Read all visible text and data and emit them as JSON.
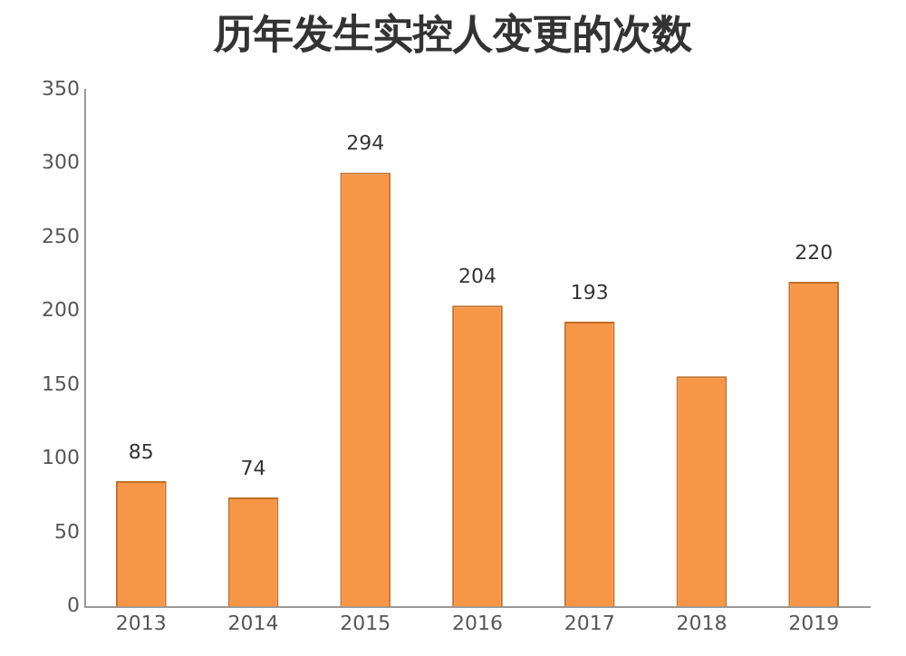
{
  "chart_data": {
    "type": "bar",
    "title": "历年发生实控人变更的次数",
    "categories": [
      "2013",
      "2014",
      "2015",
      "2016",
      "2017",
      "2018",
      "2019"
    ],
    "values": [
      85,
      74,
      294,
      204,
      193,
      156,
      220
    ],
    "value_labels": [
      "85",
      "74",
      "294",
      "204",
      "193",
      null,
      "220"
    ],
    "color": "#f79646",
    "ylim": [
      0,
      350
    ],
    "yticks": [
      0,
      50,
      100,
      150,
      200,
      250,
      300,
      350
    ],
    "grid": false,
    "legend": false
  }
}
